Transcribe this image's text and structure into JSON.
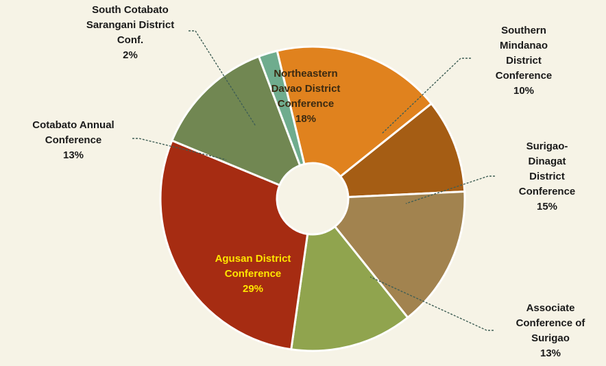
{
  "chart_data": {
    "type": "pie",
    "style": "donut",
    "legend": "none",
    "slices": [
      {
        "name": "Northeastern Davao District Conference",
        "value": 18,
        "label_lines": [
          "Northeastern",
          "Davao District",
          "Conference",
          "18%"
        ],
        "color": "#e0821e",
        "label_color": "#3a2a12"
      },
      {
        "name": "Southern Mindanao District Conference",
        "value": 10,
        "label_lines": [
          "Southern",
          "Mindanao",
          "District",
          "Conference",
          "10%"
        ],
        "color": "#a55d14",
        "label_color": "#1a1a1a"
      },
      {
        "name": "Surigao-Dinagat District Conference",
        "value": 15,
        "label_lines": [
          "Surigao-",
          "Dinagat",
          "District",
          "Conference",
          "15%"
        ],
        "color": "#a2834f",
        "label_color": "#1a1a1a"
      },
      {
        "name": "Associate Conference of Surigao",
        "value": 13,
        "label_lines": [
          "Associate",
          "Conference of",
          "Surigao",
          "13%"
        ],
        "color": "#90a44e",
        "label_color": "#1a1a1a"
      },
      {
        "name": "Agusan District Conference",
        "value": 29,
        "label_lines": [
          "Agusan District",
          "Conference",
          "29%"
        ],
        "color": "#a62c12",
        "label_color": "#ffe600"
      },
      {
        "name": "Cotabato Annual Conference",
        "value": 13,
        "label_lines": [
          "Cotabato Annual",
          "Conference",
          "13%"
        ],
        "color": "#718752",
        "label_color": "#1a1a1a"
      },
      {
        "name": "South Cotabato Sarangani District Conf.",
        "value": 2,
        "label_lines": [
          "South Cotabato",
          "Sarangani District",
          "Conf.",
          "2%"
        ],
        "color": "#6fac8e",
        "label_color": "#1a1a1a"
      }
    ]
  }
}
